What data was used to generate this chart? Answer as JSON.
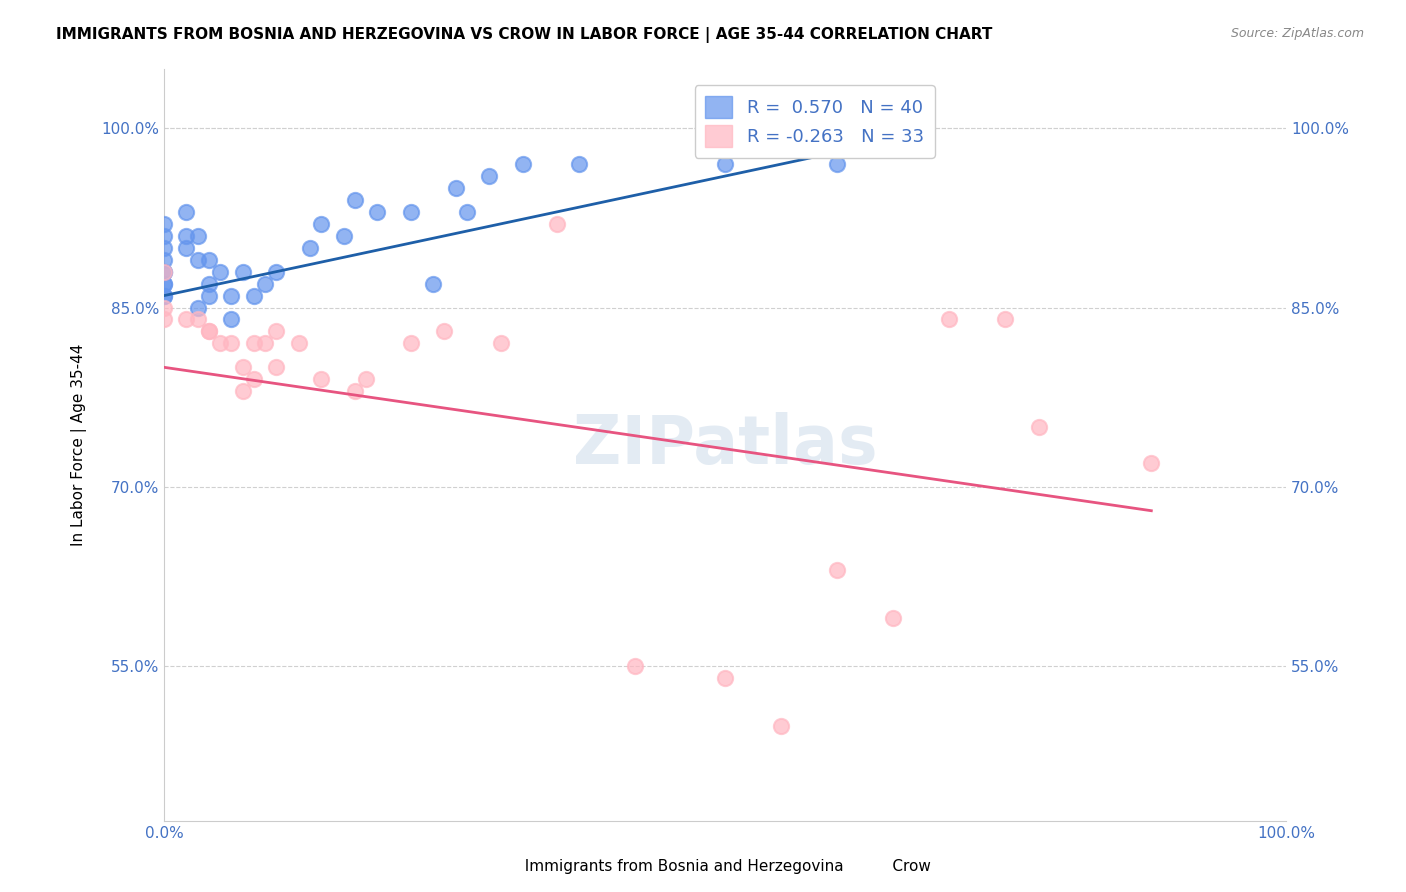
{
  "title": "IMMIGRANTS FROM BOSNIA AND HERZEGOVINA VS CROW IN LABOR FORCE | AGE 35-44 CORRELATION CHART",
  "source": "Source: ZipAtlas.com",
  "xlabel": "",
  "ylabel": "In Labor Force | Age 35-44",
  "xlim": [
    0.0,
    1.0
  ],
  "ylim": [
    0.42,
    1.05
  ],
  "yticks": [
    0.55,
    0.7,
    0.85,
    1.0
  ],
  "ytick_labels": [
    "55.0%",
    "70.0%",
    "85.0%",
    "100.0%"
  ],
  "xtick_labels": [
    "0.0%",
    "100.0%"
  ],
  "legend_R_blue": "0.570",
  "legend_N_blue": "40",
  "legend_R_pink": "-0.263",
  "legend_N_pink": "33",
  "blue_color": "#6495ED",
  "pink_color": "#FFB6C1",
  "blue_line_color": "#1E5FA8",
  "pink_line_color": "#E75480",
  "watermark": "ZIPatlas",
  "blue_scatter_x": [
    0.0,
    0.0,
    0.0,
    0.0,
    0.0,
    0.0,
    0.0,
    0.0,
    0.0,
    0.0,
    0.02,
    0.02,
    0.02,
    0.03,
    0.03,
    0.03,
    0.04,
    0.04,
    0.04,
    0.05,
    0.06,
    0.06,
    0.07,
    0.08,
    0.09,
    0.1,
    0.13,
    0.14,
    0.16,
    0.17,
    0.19,
    0.22,
    0.24,
    0.26,
    0.27,
    0.29,
    0.32,
    0.37,
    0.5,
    0.6
  ],
  "blue_scatter_y": [
    0.92,
    0.91,
    0.9,
    0.89,
    0.88,
    0.87,
    0.86,
    0.88,
    0.87,
    0.86,
    0.91,
    0.9,
    0.93,
    0.91,
    0.89,
    0.85,
    0.89,
    0.87,
    0.86,
    0.88,
    0.86,
    0.84,
    0.88,
    0.86,
    0.87,
    0.88,
    0.9,
    0.92,
    0.91,
    0.94,
    0.93,
    0.93,
    0.87,
    0.95,
    0.93,
    0.96,
    0.97,
    0.97,
    0.97,
    0.97
  ],
  "pink_scatter_x": [
    0.0,
    0.0,
    0.0,
    0.02,
    0.03,
    0.04,
    0.04,
    0.05,
    0.06,
    0.07,
    0.07,
    0.08,
    0.08,
    0.09,
    0.1,
    0.1,
    0.12,
    0.14,
    0.17,
    0.18,
    0.22,
    0.25,
    0.3,
    0.35,
    0.42,
    0.5,
    0.55,
    0.6,
    0.65,
    0.7,
    0.75,
    0.78,
    0.88
  ],
  "pink_scatter_y": [
    0.88,
    0.85,
    0.84,
    0.84,
    0.84,
    0.83,
    0.83,
    0.82,
    0.82,
    0.8,
    0.78,
    0.82,
    0.79,
    0.82,
    0.83,
    0.8,
    0.82,
    0.79,
    0.78,
    0.79,
    0.82,
    0.83,
    0.82,
    0.92,
    0.55,
    0.54,
    0.5,
    0.63,
    0.59,
    0.84,
    0.84,
    0.75,
    0.72
  ],
  "blue_line_x": [
    0.0,
    0.6
  ],
  "blue_line_y": [
    0.86,
    0.98
  ],
  "pink_line_x": [
    0.0,
    0.88
  ],
  "pink_line_y": [
    0.8,
    0.68
  ]
}
